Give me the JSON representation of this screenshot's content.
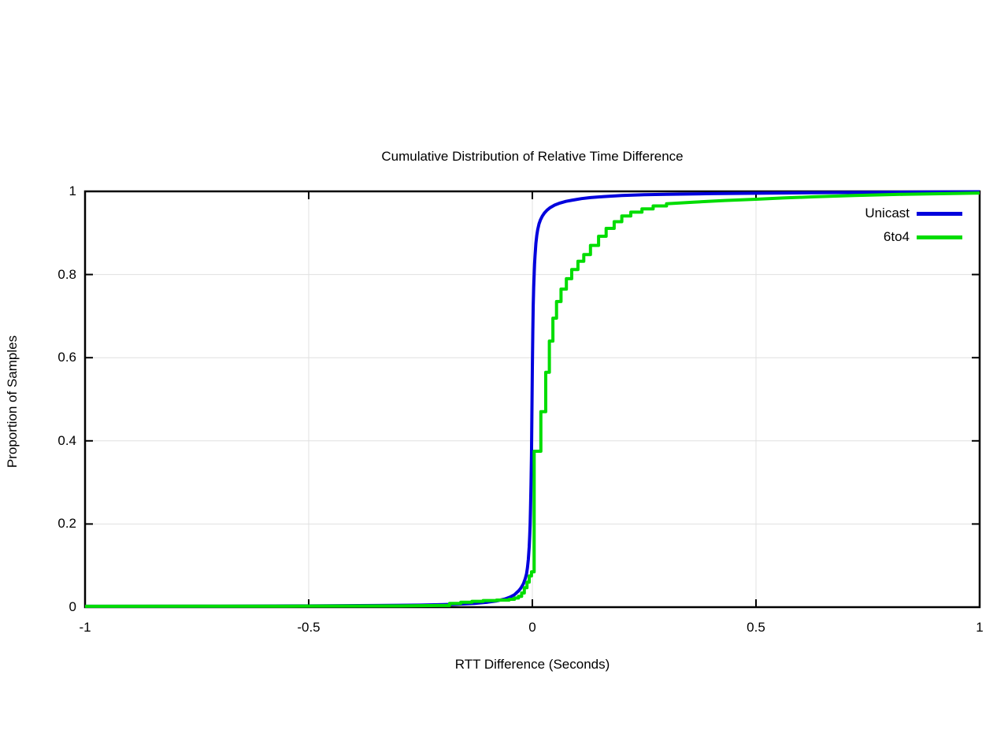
{
  "colors": {
    "background": "#ffffff",
    "grid": "#e0e0e0",
    "axis": "#000000",
    "unicast": "#0000dd",
    "sixto4": "#00dd00"
  },
  "chart_data": {
    "type": "line",
    "title": "Cumulative Distribution of Relative Time Difference",
    "xlabel": "RTT Difference (Seconds)",
    "ylabel": "Proportion of Samples",
    "xlim": [
      -1,
      1
    ],
    "ylim": [
      0,
      1
    ],
    "grid": true,
    "legend_position": "top-right-inside",
    "x_ticks": {
      "values": [
        -1,
        -0.5,
        0,
        0.5,
        1
      ],
      "labels": [
        "-1",
        "-0.5",
        "0",
        "0.5",
        "1"
      ]
    },
    "y_ticks": {
      "values": [
        0,
        0.2,
        0.4,
        0.6,
        0.8,
        1
      ],
      "labels": [
        "0",
        "0.2",
        "0.4",
        "0.6",
        "0.8",
        "1"
      ]
    },
    "series": [
      {
        "name": "Unicast",
        "color": "#0000dd",
        "style": "smooth",
        "points": [
          [
            -1,
            0.002
          ],
          [
            -0.7,
            0.0025
          ],
          [
            -0.5,
            0.003
          ],
          [
            -0.35,
            0.004
          ],
          [
            -0.25,
            0.005
          ],
          [
            -0.2,
            0.006
          ],
          [
            -0.17,
            0.007
          ],
          [
            -0.15,
            0.008
          ],
          [
            -0.13,
            0.009
          ],
          [
            -0.12,
            0.01
          ],
          [
            -0.1,
            0.012
          ],
          [
            -0.08,
            0.015
          ],
          [
            -0.06,
            0.02
          ],
          [
            -0.05,
            0.024
          ],
          [
            -0.04,
            0.03
          ],
          [
            -0.03,
            0.04
          ],
          [
            -0.025,
            0.047
          ],
          [
            -0.02,
            0.056
          ],
          [
            -0.016,
            0.068
          ],
          [
            -0.013,
            0.08
          ],
          [
            -0.011,
            0.095
          ],
          [
            -0.009,
            0.115
          ],
          [
            -0.007,
            0.145
          ],
          [
            -0.006,
            0.17
          ],
          [
            -0.005,
            0.2
          ],
          [
            -0.004,
            0.24
          ],
          [
            -0.003,
            0.295
          ],
          [
            -0.002,
            0.365
          ],
          [
            -0.001,
            0.46
          ],
          [
            0,
            0.575
          ],
          [
            0.001,
            0.665
          ],
          [
            0.002,
            0.725
          ],
          [
            0.003,
            0.77
          ],
          [
            0.004,
            0.8
          ],
          [
            0.005,
            0.825
          ],
          [
            0.006,
            0.845
          ],
          [
            0.008,
            0.875
          ],
          [
            0.01,
            0.895
          ],
          [
            0.012,
            0.908
          ],
          [
            0.015,
            0.922
          ],
          [
            0.018,
            0.931
          ],
          [
            0.022,
            0.94
          ],
          [
            0.027,
            0.948
          ],
          [
            0.033,
            0.955
          ],
          [
            0.04,
            0.961
          ],
          [
            0.05,
            0.967
          ],
          [
            0.062,
            0.972
          ],
          [
            0.075,
            0.976
          ],
          [
            0.09,
            0.979
          ],
          [
            0.11,
            0.9825
          ],
          [
            0.13,
            0.985
          ],
          [
            0.16,
            0.9875
          ],
          [
            0.2,
            0.99
          ],
          [
            0.25,
            0.992
          ],
          [
            0.3,
            0.993
          ],
          [
            0.4,
            0.9945
          ],
          [
            0.5,
            0.9955
          ],
          [
            0.65,
            0.997
          ],
          [
            0.8,
            0.998
          ],
          [
            0.9,
            0.9985
          ],
          [
            1,
            0.999
          ]
        ]
      },
      {
        "name": "6to4",
        "color": "#00dd00",
        "style": "steps",
        "points": [
          [
            -1,
            0.002
          ],
          [
            -0.55,
            0.0025
          ],
          [
            -0.3,
            0.003
          ],
          [
            -0.21,
            0.004
          ],
          [
            -0.185,
            0.004
          ],
          [
            -0.185,
            0.009
          ],
          [
            -0.16,
            0.009
          ],
          [
            -0.16,
            0.012
          ],
          [
            -0.135,
            0.012
          ],
          [
            -0.135,
            0.014
          ],
          [
            -0.11,
            0.014
          ],
          [
            -0.11,
            0.016
          ],
          [
            -0.08,
            0.016
          ],
          [
            -0.08,
            0.017
          ],
          [
            -0.052,
            0.017
          ],
          [
            -0.052,
            0.019
          ],
          [
            -0.04,
            0.019
          ],
          [
            -0.04,
            0.022
          ],
          [
            -0.031,
            0.022
          ],
          [
            -0.031,
            0.026
          ],
          [
            -0.024,
            0.026
          ],
          [
            -0.024,
            0.034
          ],
          [
            -0.018,
            0.034
          ],
          [
            -0.018,
            0.047
          ],
          [
            -0.012,
            0.047
          ],
          [
            -0.012,
            0.06
          ],
          [
            -0.007,
            0.06
          ],
          [
            -0.007,
            0.075
          ],
          [
            -0.002,
            0.075
          ],
          [
            -0.002,
            0.085
          ],
          [
            0.004,
            0.085
          ],
          [
            0.004,
            0.375
          ],
          [
            0.019,
            0.375
          ],
          [
            0.019,
            0.47
          ],
          [
            0.03,
            0.47
          ],
          [
            0.03,
            0.565
          ],
          [
            0.038,
            0.565
          ],
          [
            0.038,
            0.64
          ],
          [
            0.046,
            0.64
          ],
          [
            0.046,
            0.695
          ],
          [
            0.054,
            0.695
          ],
          [
            0.054,
            0.735
          ],
          [
            0.064,
            0.735
          ],
          [
            0.064,
            0.765
          ],
          [
            0.076,
            0.765
          ],
          [
            0.076,
            0.79
          ],
          [
            0.088,
            0.79
          ],
          [
            0.088,
            0.812
          ],
          [
            0.102,
            0.812
          ],
          [
            0.102,
            0.832
          ],
          [
            0.115,
            0.832
          ],
          [
            0.115,
            0.848
          ],
          [
            0.13,
            0.848
          ],
          [
            0.13,
            0.87
          ],
          [
            0.148,
            0.87
          ],
          [
            0.148,
            0.892
          ],
          [
            0.165,
            0.892
          ],
          [
            0.165,
            0.911
          ],
          [
            0.183,
            0.911
          ],
          [
            0.183,
            0.927
          ],
          [
            0.2,
            0.927
          ],
          [
            0.2,
            0.941
          ],
          [
            0.22,
            0.941
          ],
          [
            0.22,
            0.95
          ],
          [
            0.245,
            0.95
          ],
          [
            0.245,
            0.958
          ],
          [
            0.27,
            0.958
          ],
          [
            0.27,
            0.965
          ],
          [
            0.3,
            0.965
          ],
          [
            0.3,
            0.97
          ],
          [
            0.36,
            0.974
          ],
          [
            0.43,
            0.978
          ],
          [
            0.5,
            0.981
          ],
          [
            0.56,
            0.984
          ],
          [
            0.63,
            0.987
          ],
          [
            0.72,
            0.99
          ],
          [
            0.83,
            0.993
          ],
          [
            0.95,
            0.995
          ],
          [
            1,
            0.996
          ]
        ]
      }
    ]
  }
}
